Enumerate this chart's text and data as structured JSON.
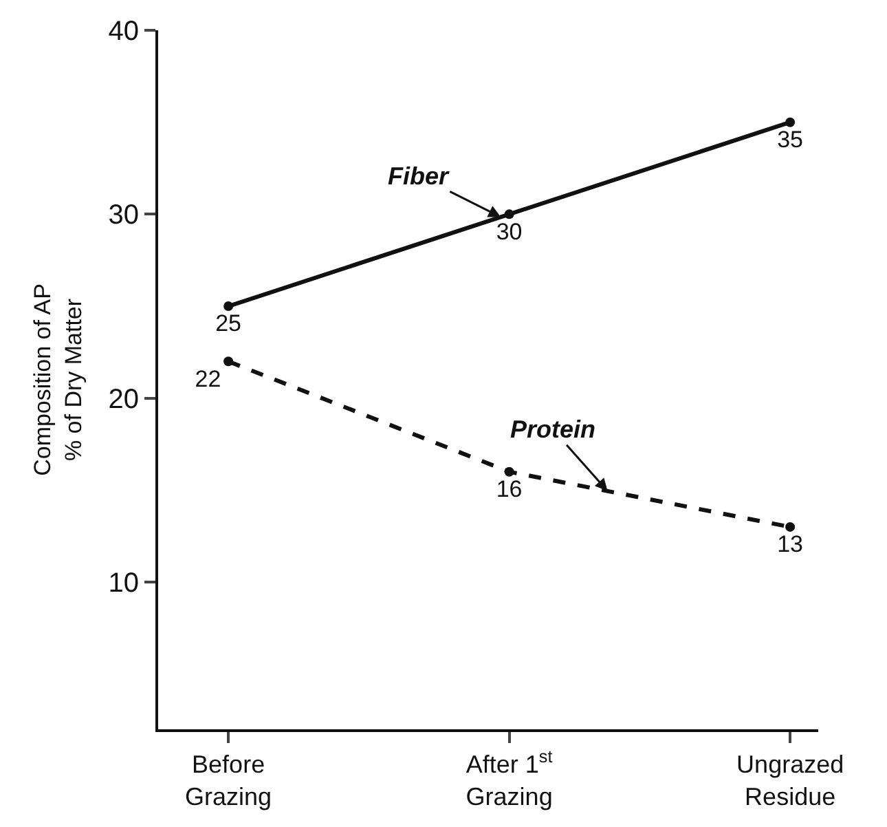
{
  "chart_data": {
    "type": "line",
    "ylabel": "Composition of AP\n% of Dry Matter",
    "categories": [
      "Before\nGrazing",
      "After 1$^{st}$\nGrazing",
      "Ungrazed\nResidue"
    ],
    "series": [
      {
        "name": "Fiber",
        "color": "#111111",
        "values": [
          25,
          30,
          35
        ],
        "line_style": "solid"
      },
      {
        "name": "Protein",
        "color": "#111111",
        "values": [
          22,
          16,
          13
        ],
        "line_style": "dashed"
      }
    ],
    "ylim": [
      2,
      40
    ],
    "yticks": [
      10,
      20,
      30,
      40
    ],
    "legend": false,
    "marker": "circle",
    "data_labels": true
  }
}
